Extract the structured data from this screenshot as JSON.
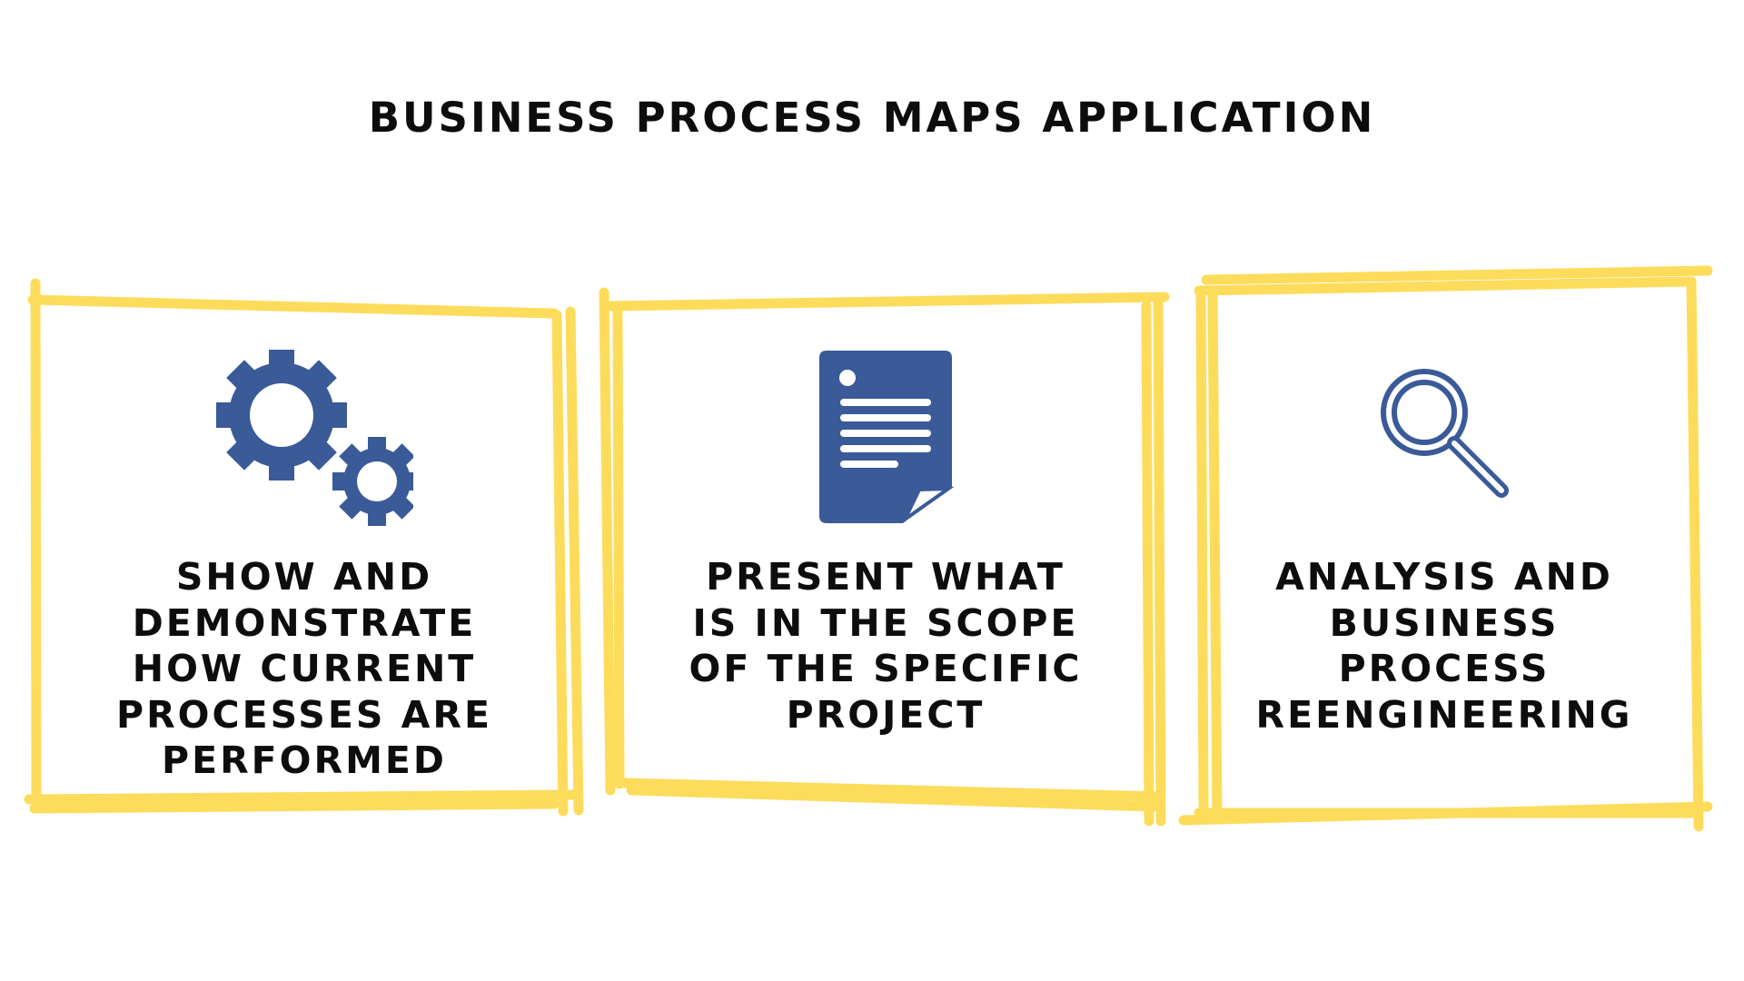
{
  "title": "BUSINESS PROCESS MAPS APPLICATION",
  "colors": {
    "frame": "#FDDC5C",
    "icon": "#3A5A98",
    "text": "#0D0D0D",
    "background": "#FFFFFF"
  },
  "cards": [
    {
      "icon": "gears-icon",
      "label": "SHOW AND\nDEMONSTRATE\nHOW CURRENT\nPROCESSES ARE\nPERFORMED"
    },
    {
      "icon": "document-icon",
      "label": "PRESENT WHAT\nIS IN THE SCOPE\nOF THE SPECIFIC\nPROJECT"
    },
    {
      "icon": "magnifier-icon",
      "label": "ANALYSIS AND\nBUSINESS\nPROCESS\nREENGINEERING"
    }
  ]
}
